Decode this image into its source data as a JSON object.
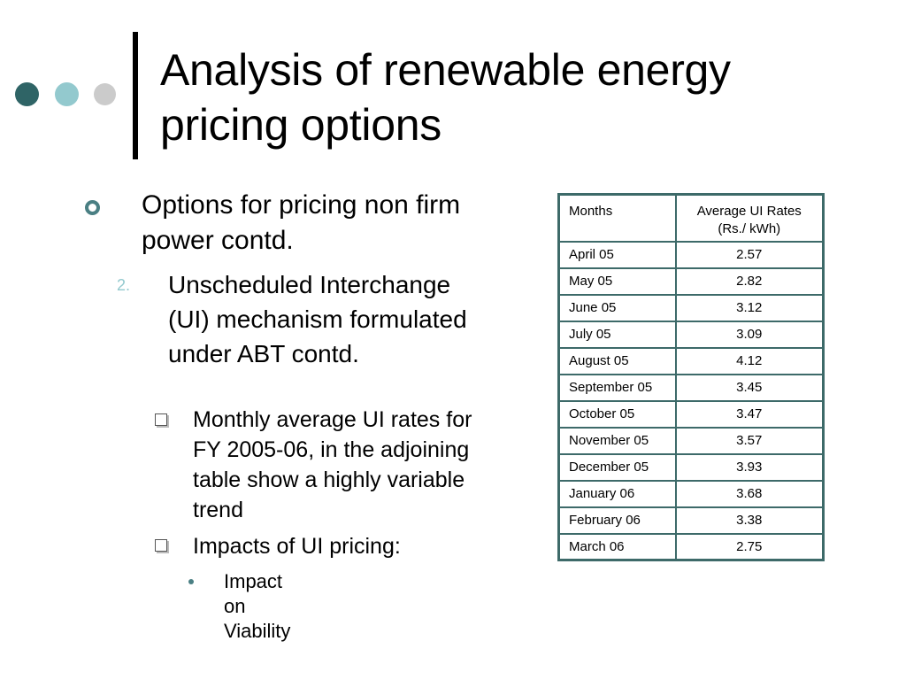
{
  "colors": {
    "dot_dark": "#2f6466",
    "dot_mid": "#93c9ce",
    "dot_light": "#cbcbcb",
    "table_border": "#3d6a69",
    "bullet_teal": "#4a7f83",
    "number_color": "#93c9ce"
  },
  "slide": {
    "title": "Analysis of renewable energy pricing options"
  },
  "body": {
    "level1": "Options for pricing non firm power contd.",
    "level2_number": "2.",
    "level2": "Unscheduled Interchange (UI) mechanism formulated under ABT contd.",
    "level3_items": [
      "Monthly average UI rates for FY 2005-06, in the adjoining table show a highly variable trend",
      "Impacts of UI pricing:"
    ],
    "level4_item": "Impact on Viability"
  },
  "table": {
    "headers": [
      "Months",
      "Average UI Rates (Rs./ kWh)"
    ],
    "rows": [
      [
        "April 05",
        "2.57"
      ],
      [
        "May 05",
        "2.82"
      ],
      [
        "June 05",
        "3.12"
      ],
      [
        "July 05",
        "3.09"
      ],
      [
        "August 05",
        "4.12"
      ],
      [
        "September 05",
        "3.45"
      ],
      [
        "October 05",
        "3.47"
      ],
      [
        "November 05",
        "3.57"
      ],
      [
        "December 05",
        "3.93"
      ],
      [
        "January 06",
        "3.68"
      ],
      [
        "February 06",
        "3.38"
      ],
      [
        "March 06",
        "2.75"
      ]
    ]
  }
}
